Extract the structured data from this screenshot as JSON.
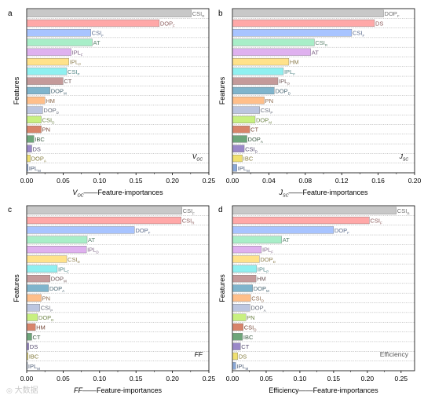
{
  "watermark": "大数据",
  "chart_data": [
    {
      "type": "bar",
      "panel": "a",
      "orientation": "horizontal",
      "corner_label": [
        "V",
        "OC"
      ],
      "xlabel_parts": [
        [
          "V",
          "OC",
          true
        ],
        [
          "",
          "",
          false
        ],
        [
          "——Feature-importances",
          "",
          false
        ]
      ],
      "ylabel": "Features",
      "xlim": [
        0,
        0.25
      ],
      "xticks": [
        "0.00",
        "0.05",
        "0.10",
        "0.15",
        "0.20",
        "0.25"
      ],
      "grid": true,
      "bars": [
        {
          "name": "CSI",
          "sub": "R",
          "value": 0.226,
          "color": "#c8c8c8"
        },
        {
          "name": "DOP",
          "sub": "F",
          "value": 0.182,
          "color": "#ffa8a8"
        },
        {
          "name": "CSI",
          "sub": "F",
          "value": 0.088,
          "color": "#a8c4ff"
        },
        {
          "name": "AT",
          "sub": "",
          "value": 0.09,
          "color": "#a8eec8"
        },
        {
          "name": "IPL",
          "sub": "F",
          "value": 0.061,
          "color": "#dfb1ef"
        },
        {
          "name": "IPL",
          "sub": "P",
          "value": 0.058,
          "color": "#ffe28a"
        },
        {
          "name": "CSI",
          "sub": "P",
          "value": 0.055,
          "color": "#8ff0f0"
        },
        {
          "name": "CT",
          "sub": "",
          "value": 0.05,
          "color": "#c49a9a"
        },
        {
          "name": "DOP",
          "sub": "M",
          "value": 0.032,
          "color": "#7fb4cc"
        },
        {
          "name": "HM",
          "sub": "",
          "value": 0.025,
          "color": "#ffbf8a"
        },
        {
          "name": "DOP",
          "sub": "D",
          "value": 0.022,
          "color": "#bcc6e0"
        },
        {
          "name": "CSI",
          "sub": "D",
          "value": 0.02,
          "color": "#c8f080"
        },
        {
          "name": "PN",
          "sub": "",
          "value": 0.02,
          "color": "#d8846a"
        },
        {
          "name": "IBC",
          "sub": "",
          "value": 0.01,
          "color": "#6da67a"
        },
        {
          "name": "DS",
          "sub": "",
          "value": 0.007,
          "color": "#9a88c8"
        },
        {
          "name": "DOP",
          "sub": "A",
          "value": 0.005,
          "color": "#f0e070"
        },
        {
          "name": "IPL",
          "sub": "M",
          "value": 0.002,
          "color": "#8aa8d8"
        }
      ]
    },
    {
      "type": "bar",
      "panel": "b",
      "orientation": "horizontal",
      "corner_label": [
        "J",
        "SC"
      ],
      "xlabel_parts": [
        [
          "J",
          "SC",
          true
        ],
        [
          "——Feature-importances",
          "",
          false
        ]
      ],
      "ylabel": "Features",
      "xlim": [
        0,
        0.2
      ],
      "xticks": [
        "0.00",
        "0.04",
        "0.08",
        "0.12",
        "0.16",
        "0.20"
      ],
      "grid": true,
      "bars": [
        {
          "name": "DOP",
          "sub": "F",
          "value": 0.166,
          "color": "#c8c8c8"
        },
        {
          "name": "DS",
          "sub": "",
          "value": 0.156,
          "color": "#ffa8a8"
        },
        {
          "name": "CSI",
          "sub": "F",
          "value": 0.131,
          "color": "#a8c4ff"
        },
        {
          "name": "CSI",
          "sub": "R",
          "value": 0.09,
          "color": "#a8eec8"
        },
        {
          "name": "AT",
          "sub": "",
          "value": 0.086,
          "color": "#dfb1ef"
        },
        {
          "name": "HM",
          "sub": "",
          "value": 0.062,
          "color": "#ffe28a"
        },
        {
          "name": "IPL",
          "sub": "F",
          "value": 0.056,
          "color": "#8ff0f0"
        },
        {
          "name": "IPL",
          "sub": "P",
          "value": 0.05,
          "color": "#c49a9a"
        },
        {
          "name": "DOP",
          "sub": "D",
          "value": 0.046,
          "color": "#7fb4cc"
        },
        {
          "name": "PN",
          "sub": "",
          "value": 0.035,
          "color": "#ffbf8a"
        },
        {
          "name": "CSI",
          "sub": "P",
          "value": 0.03,
          "color": "#bcc6e0"
        },
        {
          "name": "DOP",
          "sub": "M",
          "value": 0.025,
          "color": "#c8f080"
        },
        {
          "name": "CT",
          "sub": "",
          "value": 0.019,
          "color": "#d8846a"
        },
        {
          "name": "DOP",
          "sub": "A",
          "value": 0.016,
          "color": "#6da67a"
        },
        {
          "name": "CSI",
          "sub": "D",
          "value": 0.013,
          "color": "#9a88c8"
        },
        {
          "name": "IBC",
          "sub": "",
          "value": 0.011,
          "color": "#f0e070"
        },
        {
          "name": "IPL",
          "sub": "M",
          "value": 0.005,
          "color": "#8aa8d8"
        }
      ]
    },
    {
      "type": "bar",
      "panel": "c",
      "orientation": "horizontal",
      "corner_label": [
        "FF",
        ""
      ],
      "xlabel_parts": [
        [
          "FF",
          "",
          true
        ],
        [
          "——Feature-importances",
          "",
          false
        ]
      ],
      "ylabel": "Features",
      "xlim": [
        0,
        0.25
      ],
      "xticks": [
        "0.00",
        "0.05",
        "0.10",
        "0.15",
        "0.20",
        "0.25"
      ],
      "grid": true,
      "bars": [
        {
          "name": "CSI",
          "sub": "F",
          "value": 0.213,
          "color": "#c8c8c8"
        },
        {
          "name": "CSI",
          "sub": "R",
          "value": 0.212,
          "color": "#ffa8a8"
        },
        {
          "name": "DOP",
          "sub": "F",
          "value": 0.148,
          "color": "#a8c4ff"
        },
        {
          "name": "AT",
          "sub": "",
          "value": 0.083,
          "color": "#a8eec8"
        },
        {
          "name": "IPL",
          "sub": "D",
          "value": 0.082,
          "color": "#dfb1ef"
        },
        {
          "name": "CSI",
          "sub": "D",
          "value": 0.055,
          "color": "#ffe28a"
        },
        {
          "name": "IPL",
          "sub": "F",
          "value": 0.042,
          "color": "#8ff0f0"
        },
        {
          "name": "DOP",
          "sub": "M",
          "value": 0.032,
          "color": "#c49a9a"
        },
        {
          "name": "DOP",
          "sub": "A",
          "value": 0.03,
          "color": "#7fb4cc"
        },
        {
          "name": "PN",
          "sub": "",
          "value": 0.02,
          "color": "#ffbf8a"
        },
        {
          "name": "CSI",
          "sub": "P",
          "value": 0.018,
          "color": "#bcc6e0"
        },
        {
          "name": "DOP",
          "sub": "D",
          "value": 0.015,
          "color": "#c8f080"
        },
        {
          "name": "HM",
          "sub": "",
          "value": 0.012,
          "color": "#d8846a"
        },
        {
          "name": "CT",
          "sub": "",
          "value": 0.007,
          "color": "#6da67a"
        },
        {
          "name": "DS",
          "sub": "",
          "value": 0.003,
          "color": "#9a88c8"
        },
        {
          "name": "IBC",
          "sub": "",
          "value": 0.002,
          "color": "#f0e070"
        },
        {
          "name": "IPL",
          "sub": "M",
          "value": 0.001,
          "color": "#8aa8d8"
        }
      ]
    },
    {
      "type": "bar",
      "panel": "d",
      "orientation": "horizontal",
      "corner_label": [
        "Efficiency",
        ""
      ],
      "xlabel_parts": [
        [
          "Efficiency——Feature-importances",
          "",
          false
        ]
      ],
      "ylabel": "Features",
      "xlim": [
        0,
        0.27
      ],
      "xticks": [
        "0.00",
        "0.05",
        "0.10",
        "0.15",
        "0.20",
        "0.25"
      ],
      "xtick_values": [
        0,
        0.05,
        0.1,
        0.15,
        0.2,
        0.25
      ],
      "grid": true,
      "bars": [
        {
          "name": "CSI",
          "sub": "R",
          "value": 0.243,
          "color": "#c8c8c8"
        },
        {
          "name": "CSI",
          "sub": "F",
          "value": 0.203,
          "color": "#ffa8a8"
        },
        {
          "name": "DOP",
          "sub": "F",
          "value": 0.15,
          "color": "#a8c4ff"
        },
        {
          "name": "AT",
          "sub": "",
          "value": 0.073,
          "color": "#a8eec8"
        },
        {
          "name": "IPL",
          "sub": "F",
          "value": 0.043,
          "color": "#dfb1ef"
        },
        {
          "name": "DOP",
          "sub": "D",
          "value": 0.04,
          "color": "#ffe28a"
        },
        {
          "name": "IPL",
          "sub": "P",
          "value": 0.036,
          "color": "#8ff0f0"
        },
        {
          "name": "HM",
          "sub": "",
          "value": 0.035,
          "color": "#c49a9a"
        },
        {
          "name": "DOP",
          "sub": "M",
          "value": 0.03,
          "color": "#7fb4cc"
        },
        {
          "name": "CSI",
          "sub": "D",
          "value": 0.027,
          "color": "#ffbf8a"
        },
        {
          "name": "DOP",
          "sub": "A",
          "value": 0.026,
          "color": "#bcc6e0"
        },
        {
          "name": "PN",
          "sub": "",
          "value": 0.02,
          "color": "#c8f080"
        },
        {
          "name": "CSI",
          "sub": "D",
          "value": 0.016,
          "color": "#d8846a"
        },
        {
          "name": "IBC",
          "sub": "",
          "value": 0.015,
          "color": "#6da67a"
        },
        {
          "name": "CT",
          "sub": "",
          "value": 0.012,
          "color": "#9a88c8"
        },
        {
          "name": "DS",
          "sub": "",
          "value": 0.008,
          "color": "#f0e070"
        },
        {
          "name": "IPL",
          "sub": "M",
          "value": 0.005,
          "color": "#8aa8d8"
        }
      ]
    }
  ]
}
